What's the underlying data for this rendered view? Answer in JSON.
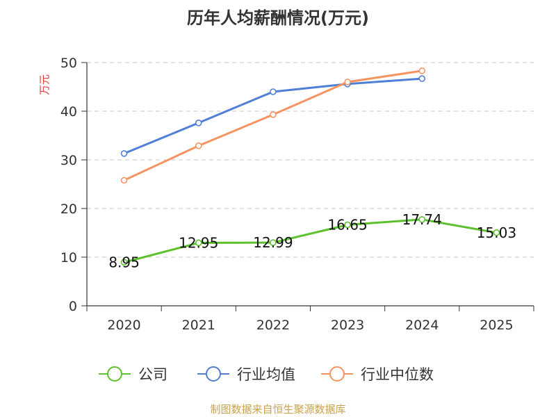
{
  "chart_data": {
    "type": "line",
    "title": "历年人均薪酬情况(万元)",
    "ylabel": "万元",
    "xlabel": "",
    "ylim": [
      0,
      50
    ],
    "yticks": [
      0,
      10,
      20,
      30,
      40,
      50
    ],
    "categories": [
      "2020",
      "2021",
      "2022",
      "2023",
      "2024",
      "2025"
    ],
    "grid": true,
    "legend_position": "bottom",
    "series": [
      {
        "name": "公司",
        "color": "#5cc12c",
        "values": [
          8.95,
          12.95,
          12.99,
          16.65,
          17.74,
          15.03
        ],
        "show_labels": true
      },
      {
        "name": "行业均值",
        "color": "#4f7fd6",
        "values": [
          31.3,
          37.6,
          44.0,
          45.6,
          46.7,
          null
        ],
        "show_labels": false
      },
      {
        "name": "行业中位数",
        "color": "#f59460",
        "values": [
          25.8,
          32.9,
          39.3,
          46.0,
          48.3,
          null
        ],
        "show_labels": false
      }
    ],
    "source": "制图数据来自恒生聚源数据库"
  }
}
